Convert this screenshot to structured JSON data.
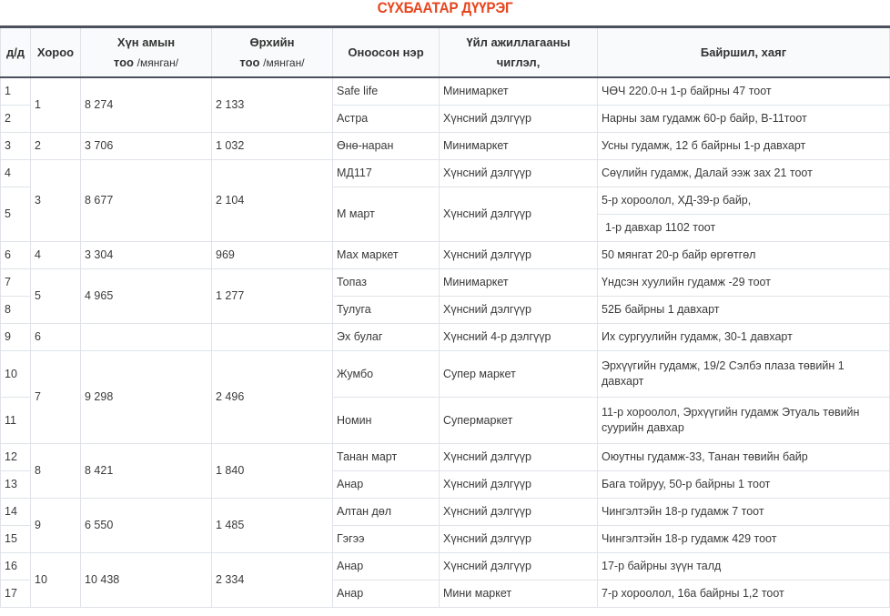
{
  "title": "СҮХБААТАР ДҮҮРЭГ",
  "headers": {
    "num": "д/д",
    "khoroo": "Хороо",
    "pop_main": "Хүн амын",
    "pop_sub_bold": "тоо",
    "pop_sub": "/мянган/",
    "hh_main": "Өрхийн",
    "hh_sub_bold": "тоо",
    "hh_sub": "/мянган/",
    "name": "Оноосон нэр",
    "activity_line1": "Үйл ажиллагааны",
    "activity_line2": "чиглэл,",
    "address": "Байршил, хаяг"
  },
  "groups": [
    {
      "khoroo": "1",
      "population": "8 274",
      "households": "2 133",
      "rows": [
        {
          "n": "1",
          "name": "Safe life",
          "activity": "Минимаркет",
          "address": [
            "ЧӨЧ 220.0-н 1-р байрны 47 тоот"
          ]
        },
        {
          "n": "2",
          "name": "Астра",
          "activity": "Хүнсний дэлгүүр",
          "address": [
            "Нарны зам гудамж 60-р байр, В-11тоот"
          ]
        }
      ]
    },
    {
      "khoroo": "2",
      "population": "3 706",
      "households": "1 032",
      "rows": [
        {
          "n": "3",
          "name": "Өнө-наран",
          "activity": "Минимаркет",
          "address": [
            "Усны гудамж, 12 б байрны 1-р давхарт"
          ]
        }
      ]
    },
    {
      "khoroo": "3",
      "population": "8 677",
      "households": "2 104",
      "rows": [
        {
          "n": "4",
          "name": "МД117",
          "activity": "Хүнсний дэлгүүр",
          "address": [
            "Сөүлийн гудамж, Далай ээж зах 21 тоот"
          ]
        },
        {
          "n": "5",
          "name": "М март",
          "activity": "Хүнсний дэлгүүр",
          "address": [
            "5-р хороолол, ХД-39-р байр,",
            "1-р давхар 1102 тоот"
          ]
        }
      ]
    },
    {
      "khoroo": "4",
      "population": "3 304",
      "households": "969",
      "rows": [
        {
          "n": "6",
          "name": "Мах маркет",
          "activity": "Хүнсний дэлгүүр",
          "address": [
            "50 мянгат 20-р байр өргөтгөл"
          ]
        }
      ]
    },
    {
      "khoroo": "5",
      "population": "4 965",
      "households": "1 277",
      "rows": [
        {
          "n": "7",
          "name": "Топаз",
          "activity": "Минимаркет",
          "address": [
            "Үндсэн хуулийн гудамж -29 тоот"
          ]
        },
        {
          "n": "8",
          "name": "Тулуга",
          "activity": "Хүнсний дэлгүүр",
          "address": [
            "52Б байрны 1 давхарт"
          ]
        }
      ]
    },
    {
      "khoroo": "6",
      "population": "",
      "households": "",
      "rows": [
        {
          "n": "9",
          "name": "Эх булаг",
          "activity": "Хүнсний 4-р дэлгүүр",
          "address": [
            "Их сургуулийн гудамж, 30-1 давхарт"
          ]
        }
      ]
    },
    {
      "khoroo": "7",
      "population": "9 298",
      "households": "2 496",
      "rows": [
        {
          "n": "10",
          "name": "Жумбо",
          "activity": "Супер маркет",
          "address": [
            "Эрхүүгийн гудамж, 19/2 Сэлбэ плаза төвийн 1 давхарт"
          ],
          "tall": true
        },
        {
          "n": "11",
          "name": "Номин",
          "activity": "Супермаркет",
          "address": [
            "11-р хороолол, Эрхүүгийн гудамж Этуаль төвийн суурийн давхар"
          ],
          "tall": true
        }
      ]
    },
    {
      "khoroo": "8",
      "population": "8 421",
      "households": "1 840",
      "rows": [
        {
          "n": "12",
          "name": "Танан март",
          "activity": "Хүнсний дэлгүүр",
          "address": [
            "Оюутны гудамж-33, Танан төвийн байр"
          ]
        },
        {
          "n": "13",
          "name": "Анар",
          "activity": "Хүнсний дэлгүүр",
          "address": [
            "Бага тойруу, 50-р байрны 1 тоот"
          ]
        }
      ]
    },
    {
      "khoroo": "9",
      "population": "6 550",
      "households": "1 485",
      "rows": [
        {
          "n": "14",
          "name": "Алтан дөл",
          "activity": "Хүнсний дэлгүүр",
          "address": [
            "Чингэлтэйн 18-р гудамж 7 тоот"
          ]
        },
        {
          "n": "15",
          "name": "Гэгээ",
          "activity": "Хүнсний дэлгүүр",
          "address": [
            "Чингэлтэйн 18-р гудамж 429 тоот"
          ]
        }
      ]
    },
    {
      "khoroo": "10",
      "population": "10 438",
      "households": "2 334",
      "rows": [
        {
          "n": "16",
          "name": "Анар",
          "activity": "Хүнсний дэлгүүр",
          "address": [
            "17-р байрны зүүн талд"
          ]
        },
        {
          "n": "17",
          "name": "Анар",
          "activity": "Мини маркет",
          "address": [
            "7-р хороолол, 16а байрны 1,2 тоот"
          ]
        }
      ]
    }
  ]
}
